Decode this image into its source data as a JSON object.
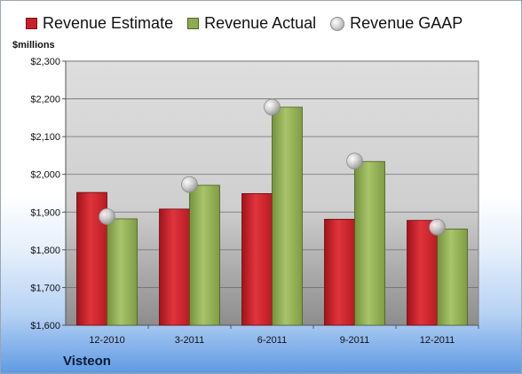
{
  "chart_data": {
    "type": "bar",
    "categories": [
      "12-2010",
      "3-2011",
      "6-2011",
      "9-2011",
      "12-2011"
    ],
    "series": [
      {
        "name": "Revenue Estimate",
        "values": [
          1952,
          1908,
          1949,
          1881,
          1878
        ],
        "color": "#c81f28",
        "kind": "bar"
      },
      {
        "name": "Revenue Actual",
        "values": [
          1882,
          1971,
          2178,
          2034,
          1855
        ],
        "color": "#8eaa52",
        "kind": "bar"
      },
      {
        "name": "Revenue GAAP",
        "values": [
          1888,
          1973,
          2178,
          2035,
          1860
        ],
        "color": "#b8b8b8",
        "kind": "marker"
      }
    ],
    "yunit": "$millions",
    "ylim": [
      1600,
      2300
    ],
    "yticks": [
      1600,
      1700,
      1800,
      1900,
      2000,
      2100,
      2200,
      2300
    ],
    "ytick_labels": [
      "$1,600",
      "$1,700",
      "$1,800",
      "$1,900",
      "$2,000",
      "$2,100",
      "$2,200",
      "$2,300"
    ],
    "grid": true,
    "legend_position": "top"
  },
  "footer": {
    "company": "Visteon"
  }
}
